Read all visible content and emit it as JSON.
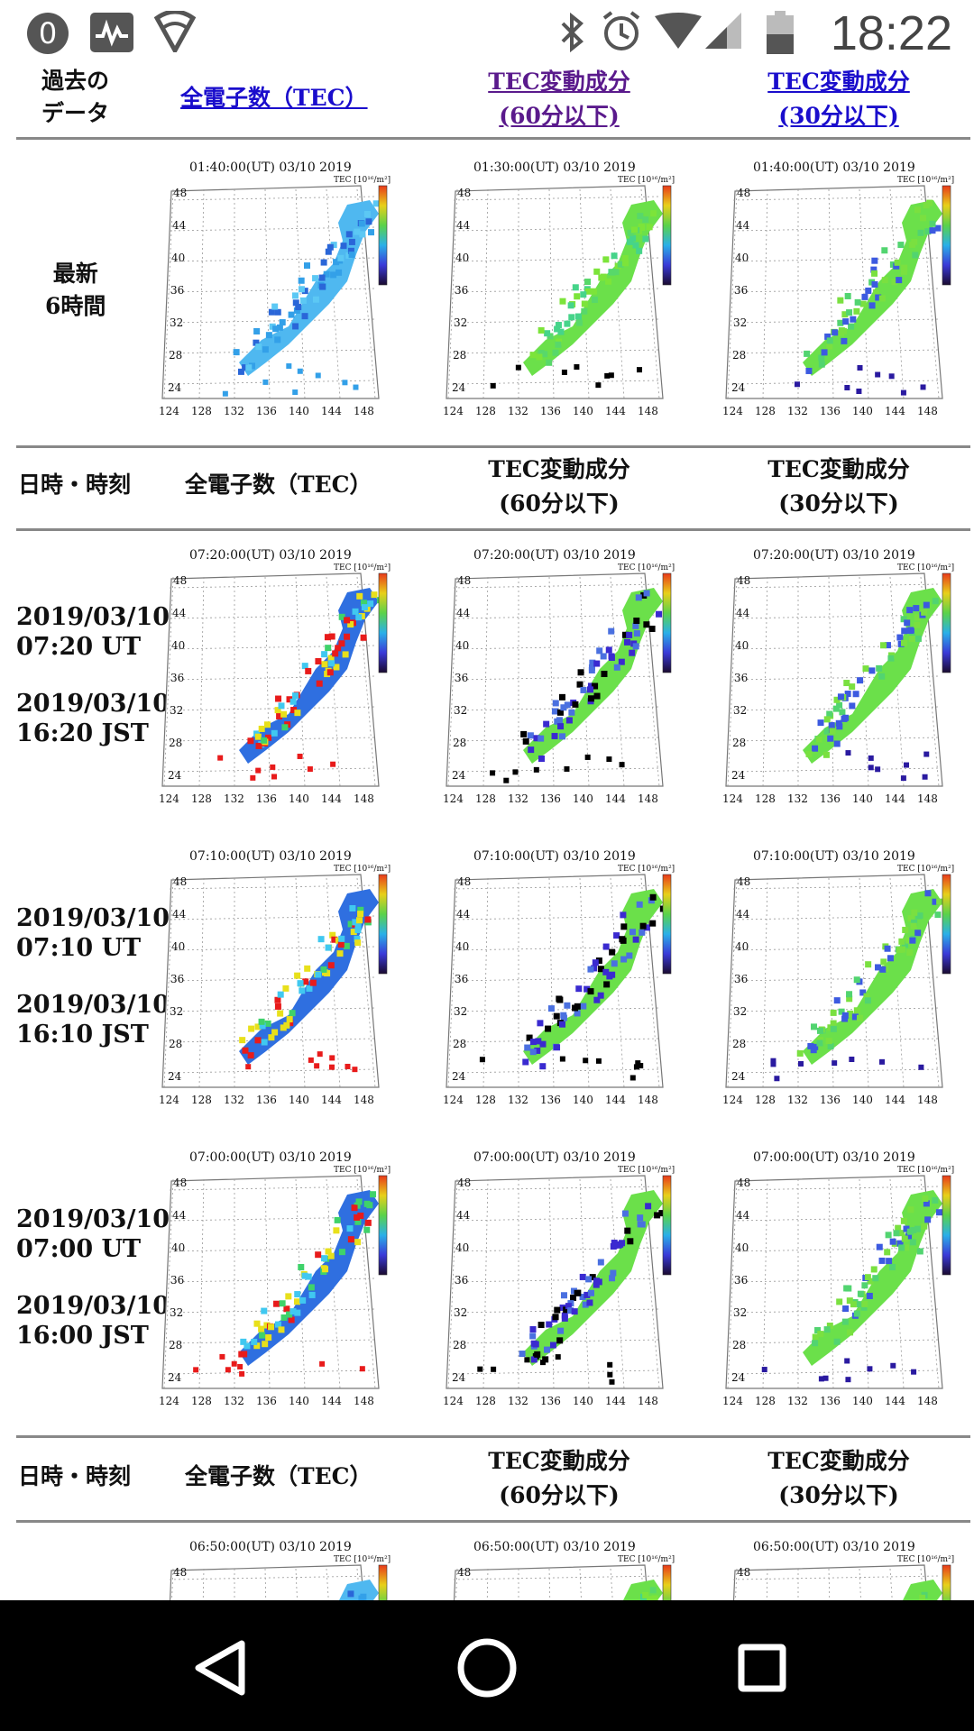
{
  "status_bar": {
    "notification_count": "0",
    "time": "18:22"
  },
  "header": {
    "past_data_label": [
      "過去の",
      "データ"
    ],
    "col_tec": "全電子数（TEC）",
    "col_60": [
      "TEC変動成分",
      "(60分以下)"
    ],
    "col_30": [
      "TEC変動成分",
      "(30分以下)"
    ]
  },
  "latest": {
    "label": [
      "最新",
      "6時間"
    ],
    "timestamps": [
      "01:40:00(UT)  03/10 2019",
      "01:30:00(UT)  03/10 2019",
      "01:40:00(UT)  03/10 2019"
    ]
  },
  "table_header": {
    "datetime": "日時・時刻",
    "col_tec": "全電子数（TEC）",
    "col_60": [
      "TEC変動成分",
      "(60分以下)"
    ],
    "col_30": [
      "TEC変動成分",
      "(30分以下)"
    ]
  },
  "rows": [
    {
      "ut_date": "2019/03/10",
      "ut_time": "07:20 UT",
      "jst_date": "2019/03/10",
      "jst_time": "16:20 JST",
      "stamp": "07:20:00(UT)  03/10 2019"
    },
    {
      "ut_date": "2019/03/10",
      "ut_time": "07:10 UT",
      "jst_date": "2019/03/10",
      "jst_time": "16:10 JST",
      "stamp": "07:10:00(UT)  03/10 2019"
    },
    {
      "ut_date": "2019/03/10",
      "ut_time": "07:00 UT",
      "jst_date": "2019/03/10",
      "jst_time": "16:00 JST",
      "stamp": "07:00:00(UT)  03/10 2019"
    }
  ],
  "table_header_2": {
    "datetime": "日時・時刻",
    "col_tec": "全電子数（TEC）",
    "col_60": [
      "TEC変動成分",
      "(60分以下)"
    ],
    "col_30": [
      "TEC変動成分",
      "(30分以下)"
    ]
  },
  "partial_row": {
    "stamp": "06:50:00(UT)  03/10 2019"
  },
  "map_axis": {
    "lat": [
      "48",
      "44",
      "40",
      "36",
      "32",
      "28",
      "24"
    ],
    "lon": [
      "124",
      "128",
      "132",
      "136",
      "140",
      "144",
      "148"
    ],
    "unit": "TEC [10¹⁶/m²]"
  },
  "icons": [
    "notification-zero-icon",
    "activity-icon",
    "wifi-icon",
    "bluetooth-icon",
    "alarm-icon",
    "signal-icon",
    "battery-icon",
    "back-icon",
    "home-icon",
    "recents-icon"
  ]
}
